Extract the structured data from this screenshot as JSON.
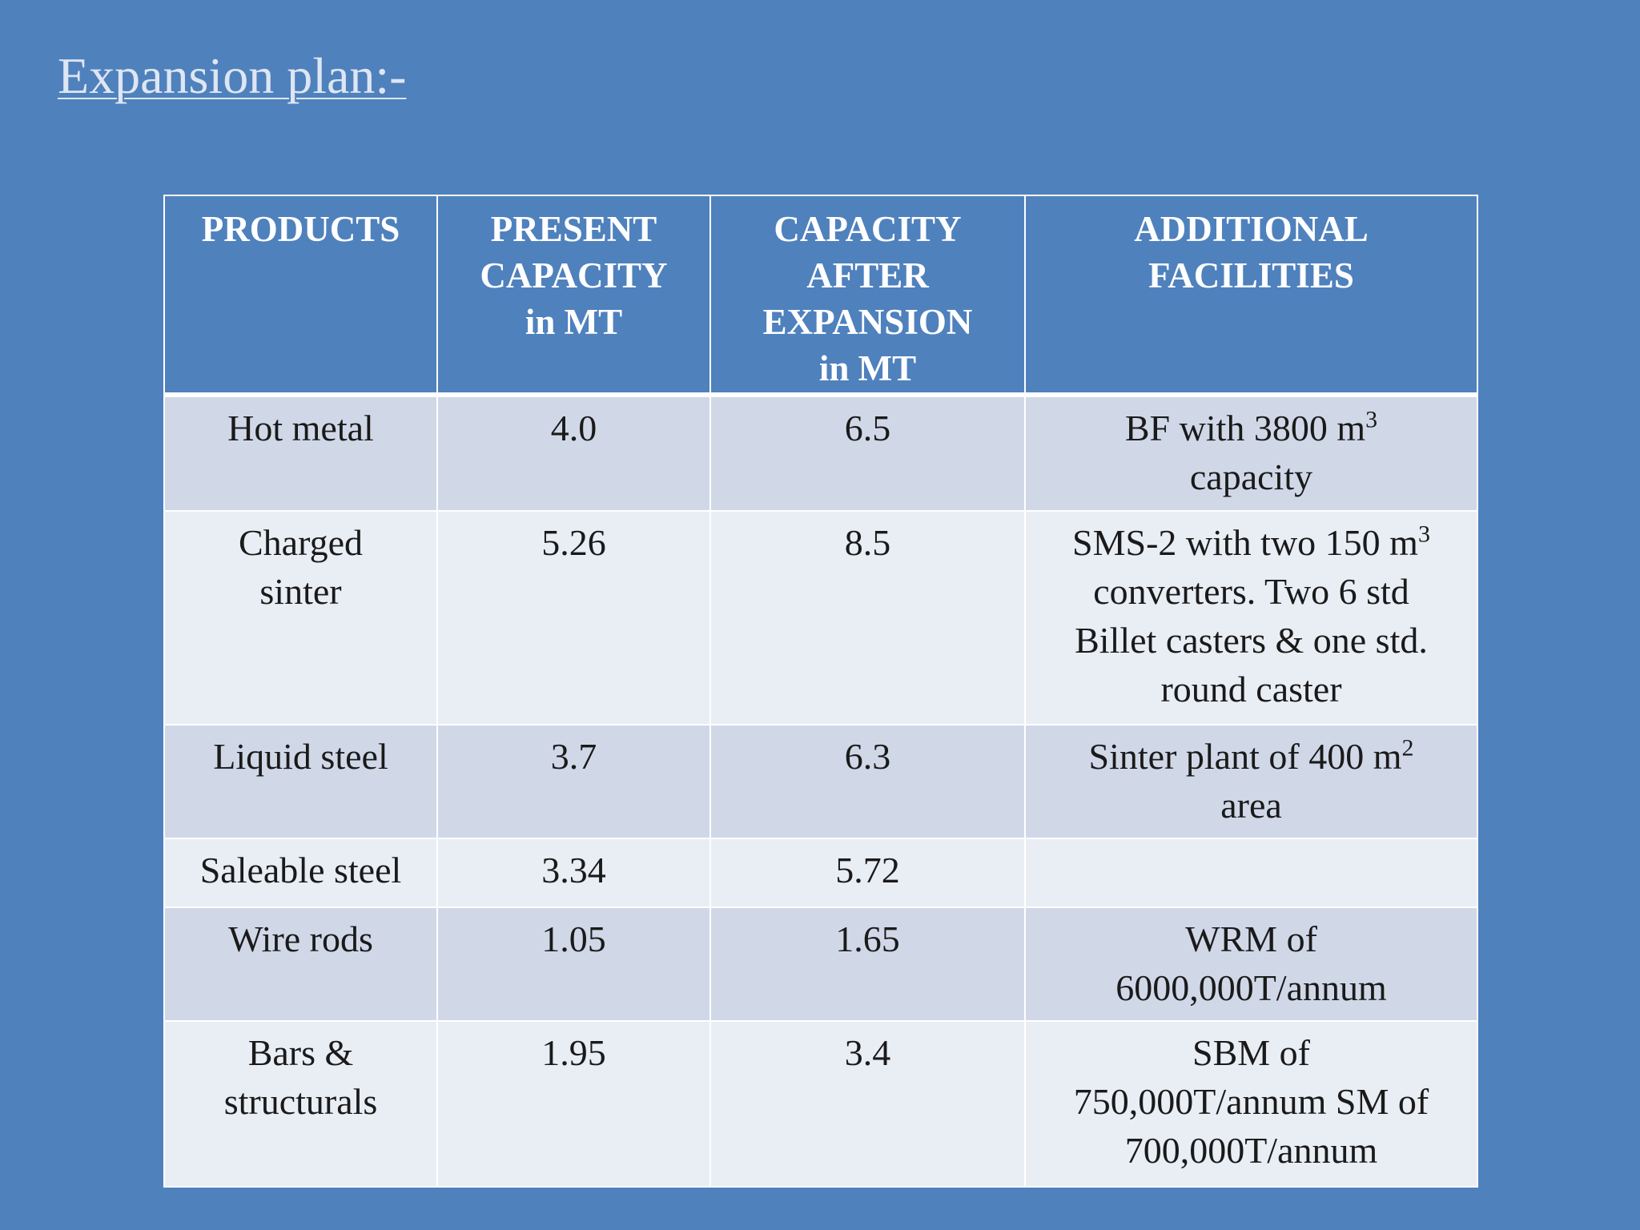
{
  "title": "Expansion plan:-",
  "table": {
    "headers": {
      "products": "PRODUCTS",
      "present_l1": "PRESENT",
      "present_l2": "CAPACITY",
      "present_l3": "in MT",
      "after_l1": "CAPACITY",
      "after_l2": "AFTER",
      "after_l3": "EXPANSION",
      "after_l4": "in MT",
      "additional_l1": "ADDITIONAL",
      "additional_l2": "FACILITIES"
    },
    "rows": [
      {
        "product_l1": "Hot metal",
        "present": "4.0",
        "after": "6.5",
        "fac_l1_pre": "BF with 3800 m",
        "fac_l1_sup": "3",
        "fac_l2": "capacity"
      },
      {
        "product_l1": "Charged",
        "product_l2": "sinter",
        "present": "5.26",
        "after": "8.5",
        "fac_l1_pre": "SMS-2 with two 150 m",
        "fac_l1_sup": "3",
        "fac_l2": "converters. Two 6 std",
        "fac_l3": "Billet casters & one std.",
        "fac_l4": "round caster"
      },
      {
        "product_l1": "Liquid steel",
        "present": "3.7",
        "after": "6.3",
        "fac_l1_pre": "Sinter plant of 400 m",
        "fac_l1_sup": "2",
        "fac_l2": "area"
      },
      {
        "product_l1": "Saleable steel",
        "present": "3.34",
        "after": "5.72"
      },
      {
        "product_l1": "Wire rods",
        "present": "1.05",
        "after": "1.65",
        "fac_l1": "WRM of",
        "fac_l2": "6000,000T/annum"
      },
      {
        "product_l1": "Bars &",
        "product_l2": "structurals",
        "present": "1.95",
        "after": "3.4",
        "fac_l1": "SBM of",
        "fac_l2": "750,000T/annum SM of",
        "fac_l3": "700,000T/annum"
      }
    ]
  }
}
